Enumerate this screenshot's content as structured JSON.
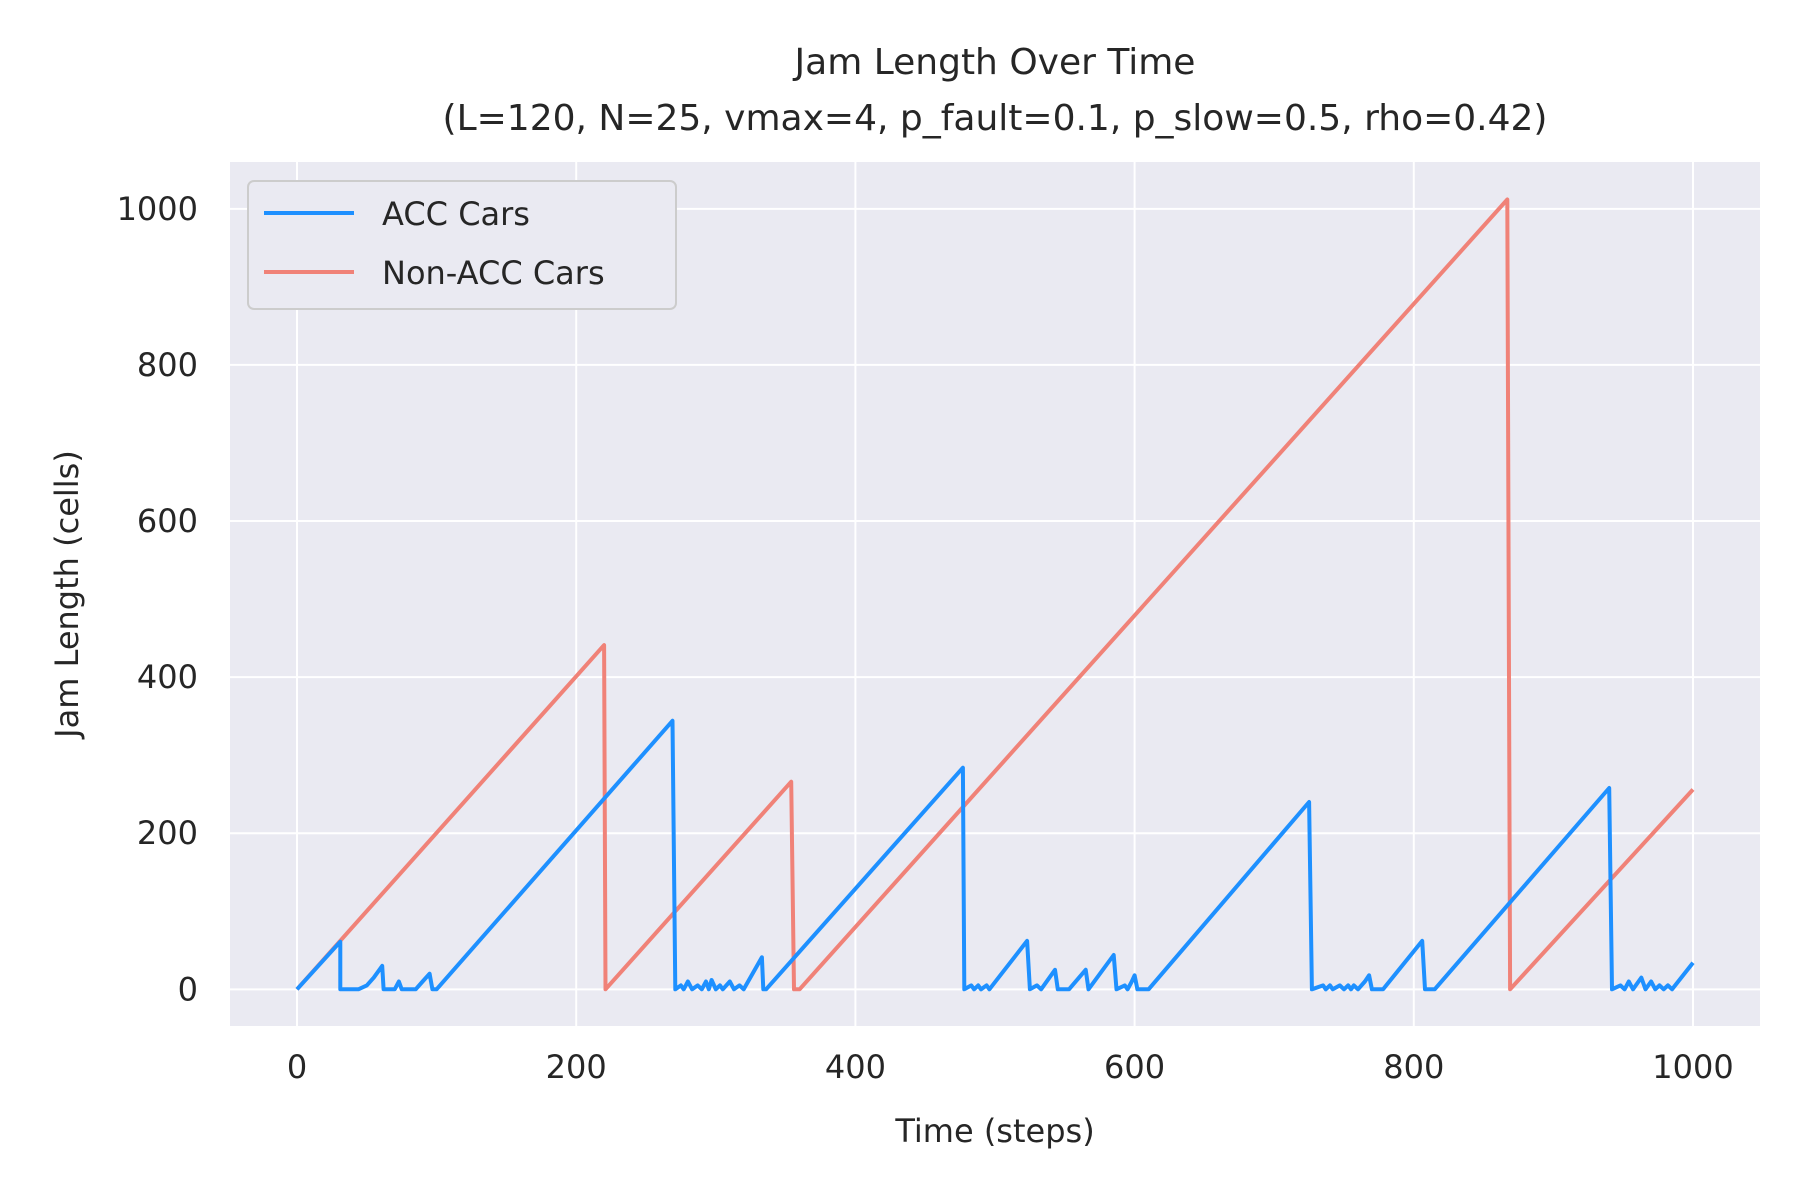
{
  "chart_data": {
    "type": "line",
    "title": "Jam Length Over Time",
    "subtitle": "(L=120, N=25, vmax=4, p_fault=0.1, p_slow=0.5, rho=0.42)",
    "xlabel": "Time (steps)",
    "ylabel": "Jam Length (cells)",
    "xlim": [
      -48,
      1048
    ],
    "ylim": [
      -47,
      1060
    ],
    "xticks": [
      0,
      200,
      400,
      600,
      800,
      1000
    ],
    "yticks": [
      0,
      200,
      400,
      600,
      800,
      1000
    ],
    "grid": true,
    "legend_position": "top-left",
    "series": [
      {
        "name": "ACC Cars",
        "color": "#1e90ff",
        "points": [
          [
            0,
            0
          ],
          [
            31,
            61
          ],
          [
            31,
            0
          ],
          [
            44,
            0
          ],
          [
            50,
            5
          ],
          [
            55,
            15
          ],
          [
            61,
            30
          ],
          [
            62,
            0
          ],
          [
            70,
            0
          ],
          [
            73,
            10
          ],
          [
            75,
            0
          ],
          [
            85,
            0
          ],
          [
            90,
            10
          ],
          [
            95,
            20
          ],
          [
            97,
            0
          ],
          [
            100,
            0
          ],
          [
            269,
            344
          ],
          [
            271,
            0
          ],
          [
            275,
            5
          ],
          [
            277,
            0
          ],
          [
            280,
            10
          ],
          [
            283,
            0
          ],
          [
            287,
            5
          ],
          [
            290,
            0
          ],
          [
            293,
            10
          ],
          [
            295,
            0
          ],
          [
            297,
            12
          ],
          [
            300,
            0
          ],
          [
            303,
            5
          ],
          [
            305,
            0
          ],
          [
            310,
            10
          ],
          [
            313,
            0
          ],
          [
            317,
            5
          ],
          [
            320,
            0
          ],
          [
            333,
            41
          ],
          [
            334,
            0
          ],
          [
            336,
            0
          ],
          [
            477,
            284
          ],
          [
            478,
            0
          ],
          [
            483,
            5
          ],
          [
            485,
            0
          ],
          [
            488,
            5
          ],
          [
            490,
            0
          ],
          [
            494,
            5
          ],
          [
            496,
            0
          ],
          [
            523,
            62
          ],
          [
            525,
            0
          ],
          [
            530,
            5
          ],
          [
            533,
            0
          ],
          [
            543,
            25
          ],
          [
            545,
            0
          ],
          [
            553,
            0
          ],
          [
            565,
            25
          ],
          [
            567,
            0
          ],
          [
            585,
            44
          ],
          [
            587,
            0
          ],
          [
            593,
            5
          ],
          [
            595,
            0
          ],
          [
            598,
            10
          ],
          [
            600,
            18
          ],
          [
            602,
            0
          ],
          [
            610,
            0
          ],
          [
            725,
            240
          ],
          [
            727,
            0
          ],
          [
            735,
            5
          ],
          [
            737,
            0
          ],
          [
            740,
            5
          ],
          [
            742,
            0
          ],
          [
            747,
            5
          ],
          [
            750,
            0
          ],
          [
            753,
            5
          ],
          [
            755,
            0
          ],
          [
            757,
            5
          ],
          [
            760,
            0
          ],
          [
            765,
            10
          ],
          [
            768,
            18
          ],
          [
            770,
            0
          ],
          [
            778,
            0
          ],
          [
            806,
            62
          ],
          [
            808,
            0
          ],
          [
            815,
            0
          ],
          [
            940,
            258
          ],
          [
            942,
            0
          ],
          [
            948,
            5
          ],
          [
            951,
            0
          ],
          [
            954,
            10
          ],
          [
            957,
            0
          ],
          [
            963,
            15
          ],
          [
            966,
            0
          ],
          [
            970,
            10
          ],
          [
            973,
            0
          ],
          [
            976,
            5
          ],
          [
            979,
            0
          ],
          [
            982,
            5
          ],
          [
            985,
            0
          ],
          [
            1000,
            34
          ]
        ]
      },
      {
        "name": "Non-ACC Cars",
        "color": "#f08278",
        "points": [
          [
            0,
            0
          ],
          [
            220,
            441
          ],
          [
            221,
            0
          ],
          [
            354,
            266
          ],
          [
            356,
            0
          ],
          [
            360,
            0
          ],
          [
            867,
            1012
          ],
          [
            869,
            0
          ],
          [
            1000,
            256
          ]
        ]
      }
    ]
  }
}
